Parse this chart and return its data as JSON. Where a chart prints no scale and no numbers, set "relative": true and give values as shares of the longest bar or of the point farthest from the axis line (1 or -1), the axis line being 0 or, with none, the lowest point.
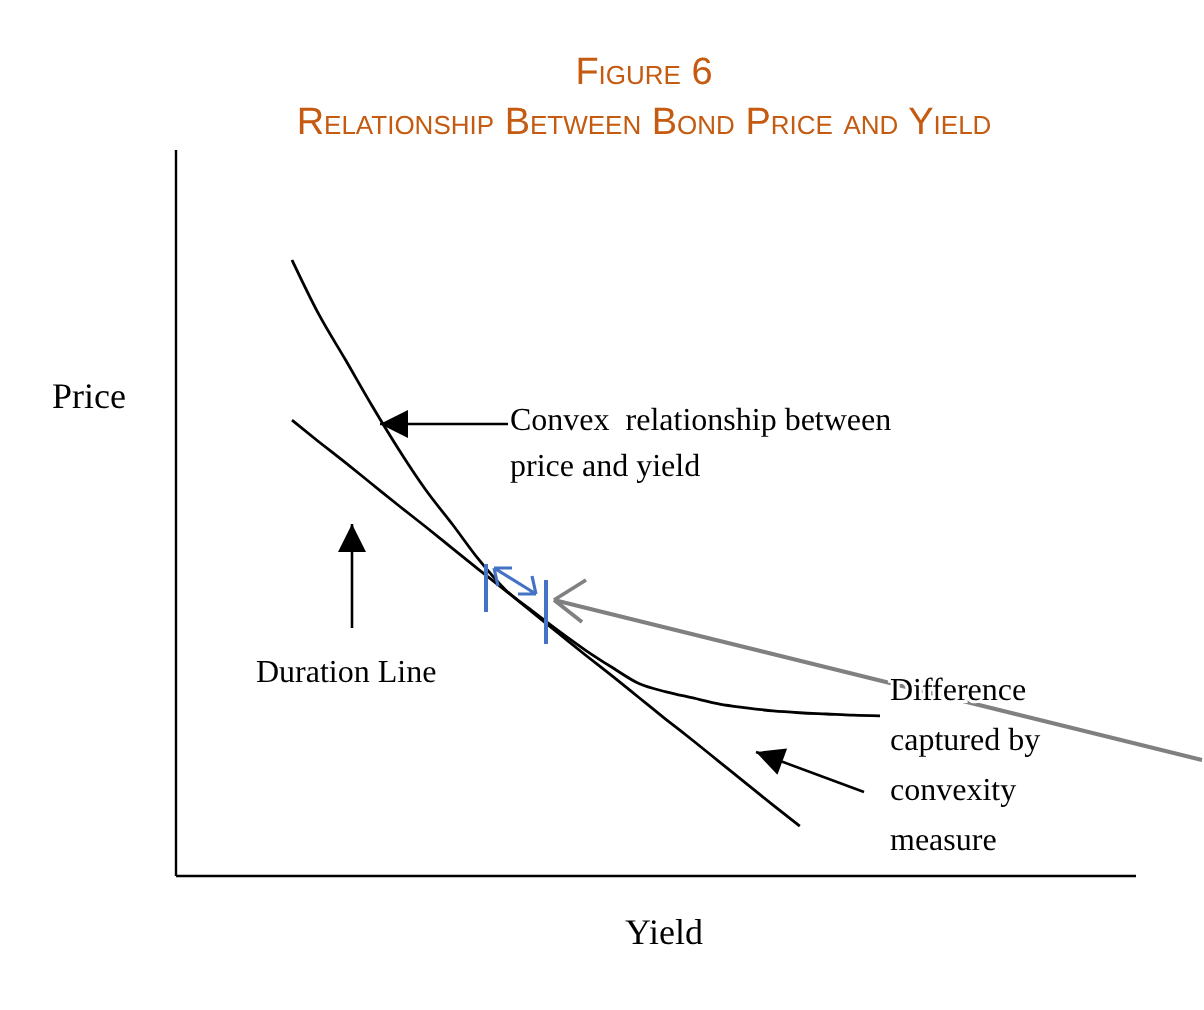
{
  "chart_data": {
    "type": "line",
    "title": "Figure 6",
    "subtitle": "Relationship Between Bond Price and Yield",
    "xlabel": "Yield",
    "ylabel": "Price",
    "relative": true,
    "categories": [
      null,
      null,
      null,
      null,
      null,
      null,
      null,
      null,
      null,
      null,
      null,
      null,
      null,
      null,
      null,
      null,
      null,
      null,
      null,
      null,
      null,
      null,
      null
    ],
    "series": [
      {
        "color": "#000000",
        "values": [
          1.0,
          0.912,
          0.838,
          0.763,
          0.692,
          0.627,
          0.571,
          0.513,
          0.464,
          0.43,
          0.397,
          0.366,
          0.338,
          0.312,
          0.299,
          0.289,
          0.279,
          0.273,
          0.268,
          0.265,
          0.263,
          0.261,
          0.26
        ]
      },
      {
        "color": "#000000",
        "values": [
          0.74,
          0.705,
          0.671,
          0.636,
          0.601,
          0.567,
          0.532,
          0.497,
          0.463,
          0.428,
          0.393,
          0.358,
          0.324,
          0.289,
          0.254,
          0.22,
          0.185,
          0.15,
          0.115,
          0.081,
          null,
          null,
          null
        ]
      }
    ],
    "annotations": [
      "Convex  relationship between price and yield",
      "Duration Line",
      "Difference captured by convexity measure"
    ],
    "marker": "none",
    "line_style": "solid"
  }
}
